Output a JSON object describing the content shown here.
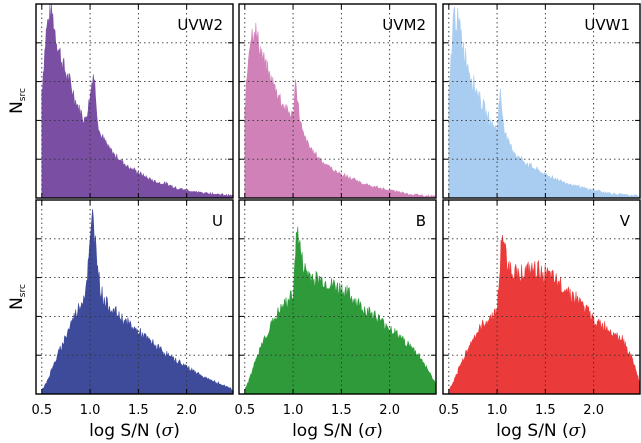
{
  "chart_data": {
    "type": "area",
    "layout": "2x3 grid of histograms, shared axes",
    "xlabel_text": "log S/N (",
    "xlabel_symbol": "σ",
    "xlabel_close": ")",
    "ylabel_main": "N",
    "ylabel_sub": "src",
    "xlim": [
      0.44,
      2.48
    ],
    "x_ticks": [
      "0.5",
      "1.0",
      "1.5",
      "2.0"
    ],
    "x_tick_values": [
      0.5,
      1.0,
      1.5,
      2.0
    ],
    "x_grid_values": [
      0.5,
      1.0,
      1.5,
      2.0
    ],
    "y_ticks_labeled": false,
    "grid": true,
    "x": [
      0.5,
      0.55,
      0.6,
      0.65,
      0.7,
      0.75,
      0.8,
      0.85,
      0.9,
      0.95,
      1.0,
      1.03,
      1.05,
      1.08,
      1.1,
      1.15,
      1.2,
      1.3,
      1.4,
      1.5,
      1.6,
      1.7,
      1.8,
      1.9,
      2.0,
      2.1,
      2.2,
      2.3,
      2.4,
      2.48
    ],
    "panels": [
      {
        "label": "UVW2",
        "color": "#7a4fa3",
        "values": [
          0.55,
          0.88,
          0.97,
          0.82,
          0.72,
          0.64,
          0.58,
          0.5,
          0.44,
          0.4,
          0.52,
          0.65,
          0.58,
          0.4,
          0.33,
          0.29,
          0.25,
          0.2,
          0.16,
          0.13,
          0.1,
          0.08,
          0.07,
          0.05,
          0.04,
          0.03,
          0.025,
          0.02,
          0.015,
          0.01
        ]
      },
      {
        "label": "UVM2",
        "color": "#d081b8",
        "values": [
          0.45,
          0.82,
          0.88,
          0.78,
          0.7,
          0.63,
          0.58,
          0.53,
          0.48,
          0.44,
          0.42,
          0.62,
          0.48,
          0.38,
          0.33,
          0.28,
          0.24,
          0.19,
          0.15,
          0.12,
          0.1,
          0.08,
          0.06,
          0.05,
          0.04,
          0.03,
          0.02,
          0.015,
          0.01,
          0.008
        ]
      },
      {
        "label": "UVW1",
        "color": "#a9cdf0",
        "values": [
          0.5,
          0.95,
          0.9,
          0.78,
          0.68,
          0.6,
          0.54,
          0.48,
          0.42,
          0.38,
          0.35,
          0.55,
          0.45,
          0.35,
          0.3,
          0.26,
          0.22,
          0.18,
          0.15,
          0.12,
          0.1,
          0.08,
          0.065,
          0.05,
          0.04,
          0.03,
          0.022,
          0.016,
          0.012,
          0.01
        ]
      },
      {
        "label": "U",
        "color": "#3e4a9a",
        "values": [
          0.02,
          0.06,
          0.12,
          0.18,
          0.24,
          0.3,
          0.36,
          0.41,
          0.46,
          0.52,
          0.75,
          0.95,
          0.8,
          0.68,
          0.55,
          0.48,
          0.45,
          0.4,
          0.36,
          0.32,
          0.28,
          0.24,
          0.2,
          0.17,
          0.14,
          0.11,
          0.08,
          0.06,
          0.04,
          0.02
        ]
      },
      {
        "label": "B",
        "color": "#2e9a3a",
        "values": [
          0.02,
          0.08,
          0.15,
          0.22,
          0.28,
          0.33,
          0.38,
          0.42,
          0.45,
          0.48,
          0.52,
          0.78,
          0.84,
          0.72,
          0.66,
          0.62,
          0.6,
          0.58,
          0.56,
          0.54,
          0.5,
          0.45,
          0.42,
          0.38,
          0.34,
          0.3,
          0.25,
          0.2,
          0.12,
          0.05
        ]
      },
      {
        "label": "V",
        "color": "#ea3a3a",
        "values": [
          0.02,
          0.06,
          0.12,
          0.18,
          0.24,
          0.28,
          0.32,
          0.35,
          0.38,
          0.4,
          0.44,
          0.62,
          0.85,
          0.75,
          0.68,
          0.64,
          0.62,
          0.63,
          0.64,
          0.62,
          0.58,
          0.55,
          0.5,
          0.45,
          0.38,
          0.35,
          0.32,
          0.28,
          0.18,
          0.05
        ]
      }
    ]
  }
}
